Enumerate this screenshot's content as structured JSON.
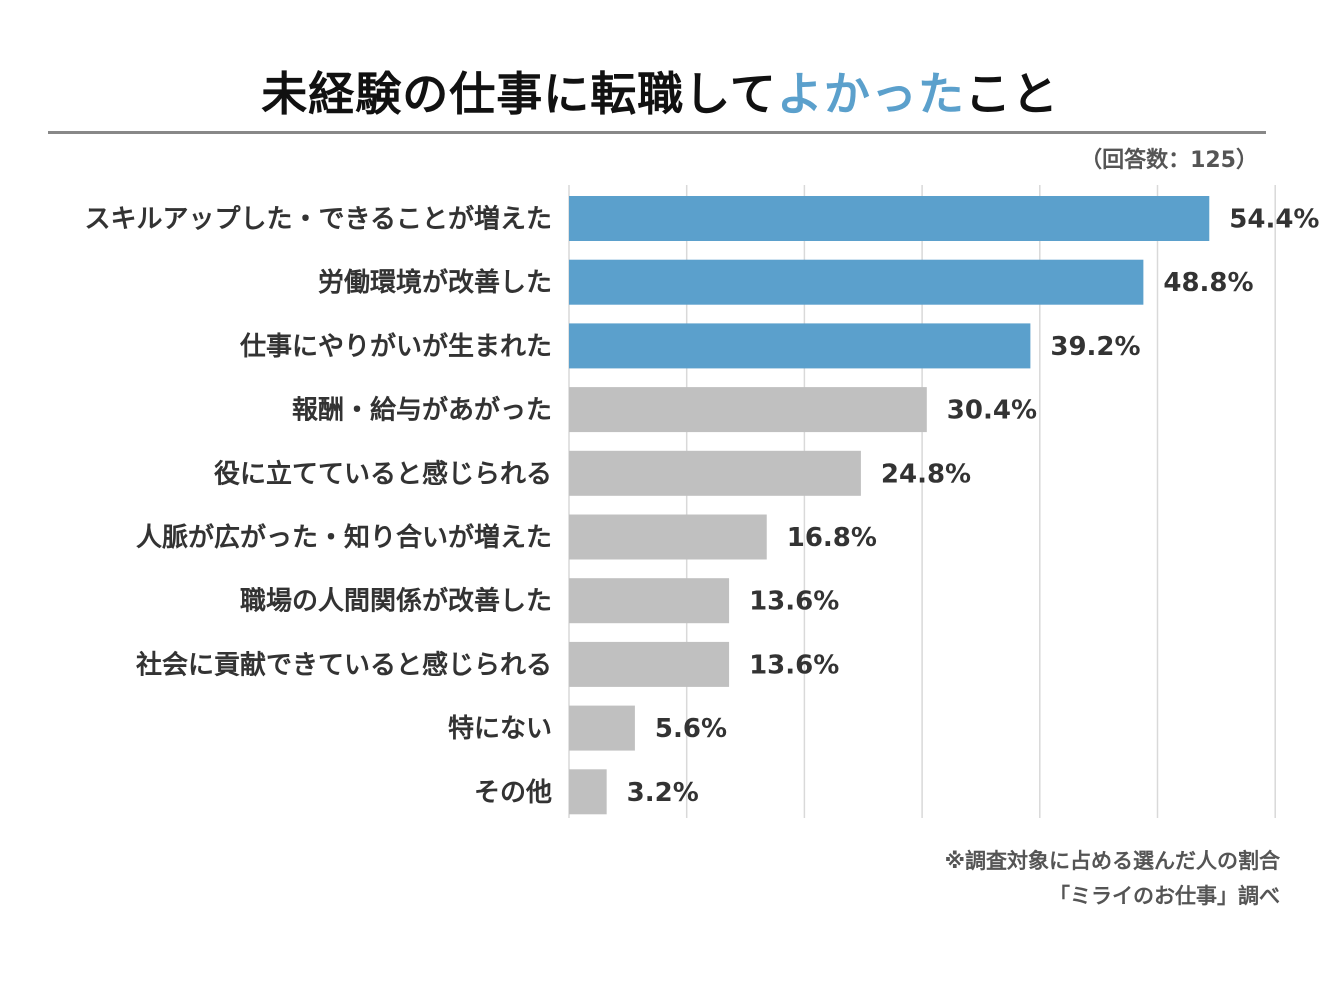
{
  "title": {
    "main": "未経験の仕事に転職して",
    "accent": "よかった",
    "tail": "こと"
  },
  "respondents": "（回答数：125）",
  "footnote": "※調査対象に占める選んだ人の割合",
  "source": "「ミライのお仕事」調べ",
  "colors": {
    "highlight": "#5ba0cc",
    "normal": "#c0c0c0",
    "grid": "#d9d9d9"
  },
  "chart_data": {
    "type": "bar",
    "orientation": "horizontal",
    "xlim": [
      0,
      60
    ],
    "grid": true,
    "categories": [
      "スキルアップした・できることが増えた",
      "労働環境が改善した",
      "仕事にやりがいが生まれた",
      "報酬・給与があがった",
      "役に立てていると感じられる",
      "人脈が広がった・知り合いが増えた",
      "職場の人間関係が改善した",
      "社会に貢献できていると感じられる",
      "特にない",
      "その他"
    ],
    "values": [
      54.4,
      48.8,
      39.2,
      30.4,
      24.8,
      16.8,
      13.6,
      13.6,
      5.6,
      3.2
    ],
    "value_labels": [
      "54.4%",
      "48.8%",
      "39.2%",
      "30.4%",
      "24.8%",
      "16.8%",
      "13.6%",
      "13.6%",
      "5.6%",
      "3.2%"
    ],
    "highlighted": [
      true,
      true,
      true,
      false,
      false,
      false,
      false,
      false,
      false,
      false
    ]
  }
}
